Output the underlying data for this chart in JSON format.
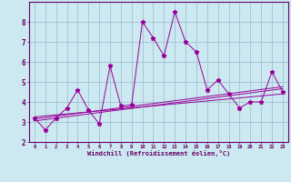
{
  "x": [
    0,
    1,
    2,
    3,
    4,
    5,
    6,
    7,
    8,
    9,
    10,
    11,
    12,
    13,
    14,
    15,
    16,
    17,
    18,
    19,
    20,
    21,
    22,
    23
  ],
  "y_main": [
    3.2,
    2.6,
    3.2,
    3.7,
    4.6,
    3.6,
    2.9,
    5.8,
    3.8,
    3.85,
    8.0,
    7.2,
    6.3,
    8.5,
    7.0,
    6.5,
    4.6,
    5.1,
    4.4,
    3.7,
    4.0,
    4.0,
    5.5,
    4.5
  ],
  "y_linear1": [
    3.15,
    3.22,
    3.29,
    3.36,
    3.43,
    3.5,
    3.57,
    3.64,
    3.71,
    3.78,
    3.85,
    3.92,
    3.99,
    4.06,
    4.13,
    4.2,
    4.27,
    4.34,
    4.41,
    4.48,
    4.55,
    4.62,
    4.69,
    4.76
  ],
  "y_linear2": [
    3.05,
    3.12,
    3.19,
    3.26,
    3.33,
    3.4,
    3.47,
    3.54,
    3.61,
    3.68,
    3.75,
    3.82,
    3.89,
    3.96,
    4.03,
    4.1,
    4.17,
    4.24,
    4.31,
    4.38,
    4.45,
    4.52,
    4.59,
    4.66
  ],
  "y_linear3": [
    3.25,
    3.3,
    3.35,
    3.4,
    3.45,
    3.5,
    3.55,
    3.6,
    3.65,
    3.7,
    3.75,
    3.8,
    3.85,
    3.9,
    3.95,
    4.0,
    4.05,
    4.1,
    4.15,
    4.2,
    4.25,
    4.3,
    4.35,
    4.4
  ],
  "line_color": "#990099",
  "bg_color": "#cce8f0",
  "grid_color": "#99bbcc",
  "axis_color": "#660066",
  "spine_color": "#660066",
  "ylim": [
    2,
    9
  ],
  "xlim": [
    -0.5,
    23.5
  ],
  "yticks": [
    2,
    3,
    4,
    5,
    6,
    7,
    8
  ],
  "xlabel": "Windchill (Refroidissement éolien,°C)",
  "xticks": [
    0,
    1,
    2,
    3,
    4,
    5,
    6,
    7,
    8,
    9,
    10,
    11,
    12,
    13,
    14,
    15,
    16,
    17,
    18,
    19,
    20,
    21,
    22,
    23
  ]
}
